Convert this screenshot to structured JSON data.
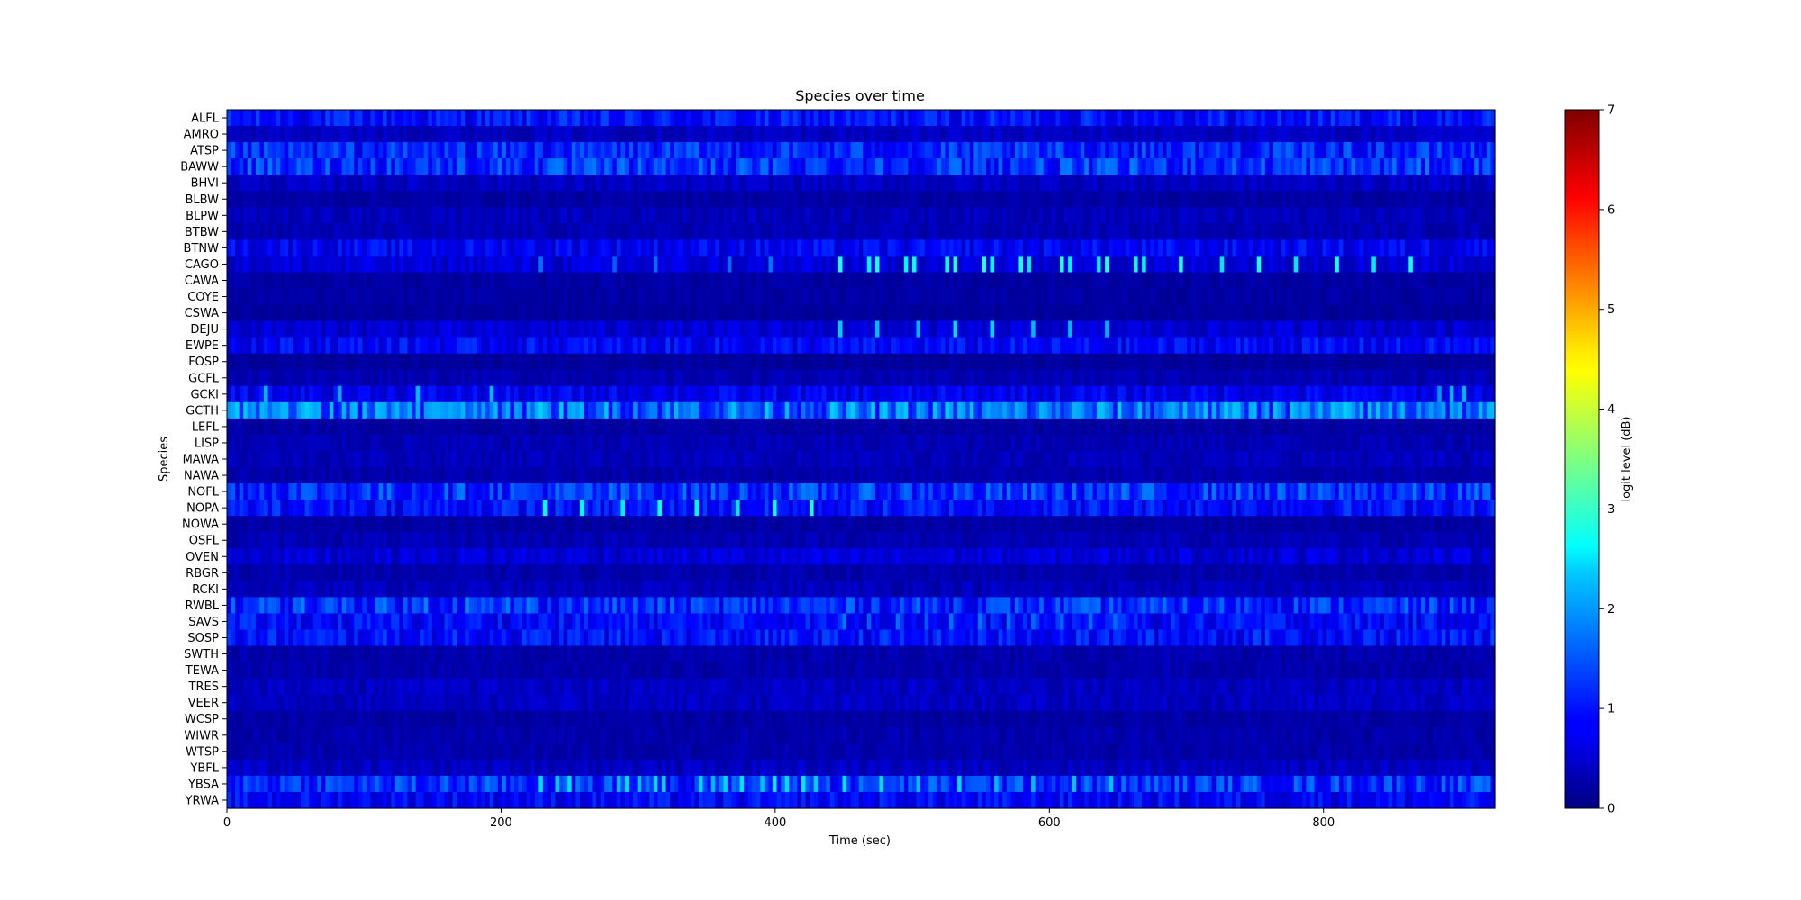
{
  "chart_data": {
    "type": "heatmap",
    "title": "Species over time",
    "xlabel": "Time (sec)",
    "ylabel": "Species",
    "xlim": [
      0,
      925
    ],
    "xticks": [
      0,
      200,
      400,
      600,
      800
    ],
    "colorbar": {
      "label": "logit level (dB)",
      "range": [
        0,
        7
      ],
      "ticks": [
        0,
        1,
        2,
        3,
        4,
        5,
        6,
        7
      ],
      "colormap": "jet"
    },
    "time_bin_sec": 3,
    "species": [
      "ALFL",
      "AMRO",
      "ATSP",
      "BAWW",
      "BHVI",
      "BLBW",
      "BLPW",
      "BTBW",
      "BTNW",
      "CAGO",
      "CAWA",
      "COYE",
      "CSWA",
      "DEJU",
      "EWPE",
      "FOSP",
      "GCFL",
      "GCKI",
      "GCTH",
      "LEFL",
      "LISP",
      "MAWA",
      "NAWA",
      "NOFL",
      "NOPA",
      "NOWA",
      "OSFL",
      "OVEN",
      "RBGR",
      "RCKI",
      "RWBL",
      "SAVS",
      "SOSP",
      "SWTH",
      "TEWA",
      "TRES",
      "VEER",
      "WCSP",
      "WIWR",
      "WTSP",
      "YBFL",
      "YBSA",
      "YRWA"
    ],
    "baseline_level": [
      0.95,
      0.45,
      1.1,
      1.2,
      0.45,
      0.25,
      0.4,
      0.35,
      0.8,
      0.6,
      0.25,
      0.25,
      0.2,
      0.55,
      0.85,
      0.2,
      0.35,
      0.75,
      1.6,
      0.25,
      0.35,
      0.4,
      0.3,
      1.2,
      0.95,
      0.25,
      0.35,
      0.6,
      0.3,
      0.4,
      1.15,
      0.9,
      0.95,
      0.3,
      0.3,
      0.45,
      0.45,
      0.25,
      0.3,
      0.3,
      0.45,
      1.2,
      0.85
    ],
    "peak_events": [
      {
        "species": "CAGO",
        "times": [
          448,
          470,
          476,
          497,
          503,
          525,
          531,
          553,
          559,
          581,
          587,
          609,
          615,
          637,
          643,
          664,
          670,
          698,
          726,
          754,
          782,
          810,
          838,
          866
        ],
        "level": 2.9
      },
      {
        "species": "CAGO",
        "times": [
          228,
          284,
          312,
          368,
          396
        ],
        "level": 1.7
      },
      {
        "species": "DEJU",
        "times": [
          448,
          476,
          504,
          532,
          560,
          588,
          616,
          644
        ],
        "level": 2.4
      },
      {
        "species": "GCTH",
        "times": [
          5,
          12,
          20,
          28,
          36,
          44,
          52,
          60,
          68,
          76,
          84,
          92,
          100,
          108,
          116,
          124,
          132,
          140,
          148,
          156,
          164,
          172,
          180,
          188,
          196,
          204,
          212,
          220,
          690,
          700,
          710,
          720,
          730,
          740,
          750,
          760,
          770,
          780,
          790,
          800,
          810,
          820,
          830,
          840,
          850,
          860,
          870,
          880,
          890,
          900
        ],
        "level": 2.2
      },
      {
        "species": "GCKI",
        "times": [
          27,
          82,
          138,
          193,
          885,
          895,
          905
        ],
        "level": 2.2
      },
      {
        "species": "NOPA",
        "times": [
          232,
          260,
          288,
          316,
          344,
          372,
          400,
          428
        ],
        "level": 2.8
      },
      {
        "species": "YBSA",
        "times": [
          230,
          240,
          250,
          285,
          292,
          300,
          313,
          320,
          345,
          355,
          365,
          375,
          390,
          400,
          410,
          420,
          430,
          450,
          478,
          506,
          534,
          562,
          590,
          618,
          646
        ],
        "level": 2.5
      },
      {
        "species": "RWBL",
        "times": [
          25,
          55,
          85,
          115,
          145,
          175,
          205,
          220
        ],
        "level": 1.9
      },
      {
        "species": "SAVS",
        "times": [
          450,
          470,
          490,
          510,
          530,
          550,
          570,
          590,
          610,
          630,
          650
        ],
        "level": 1.7
      }
    ]
  }
}
